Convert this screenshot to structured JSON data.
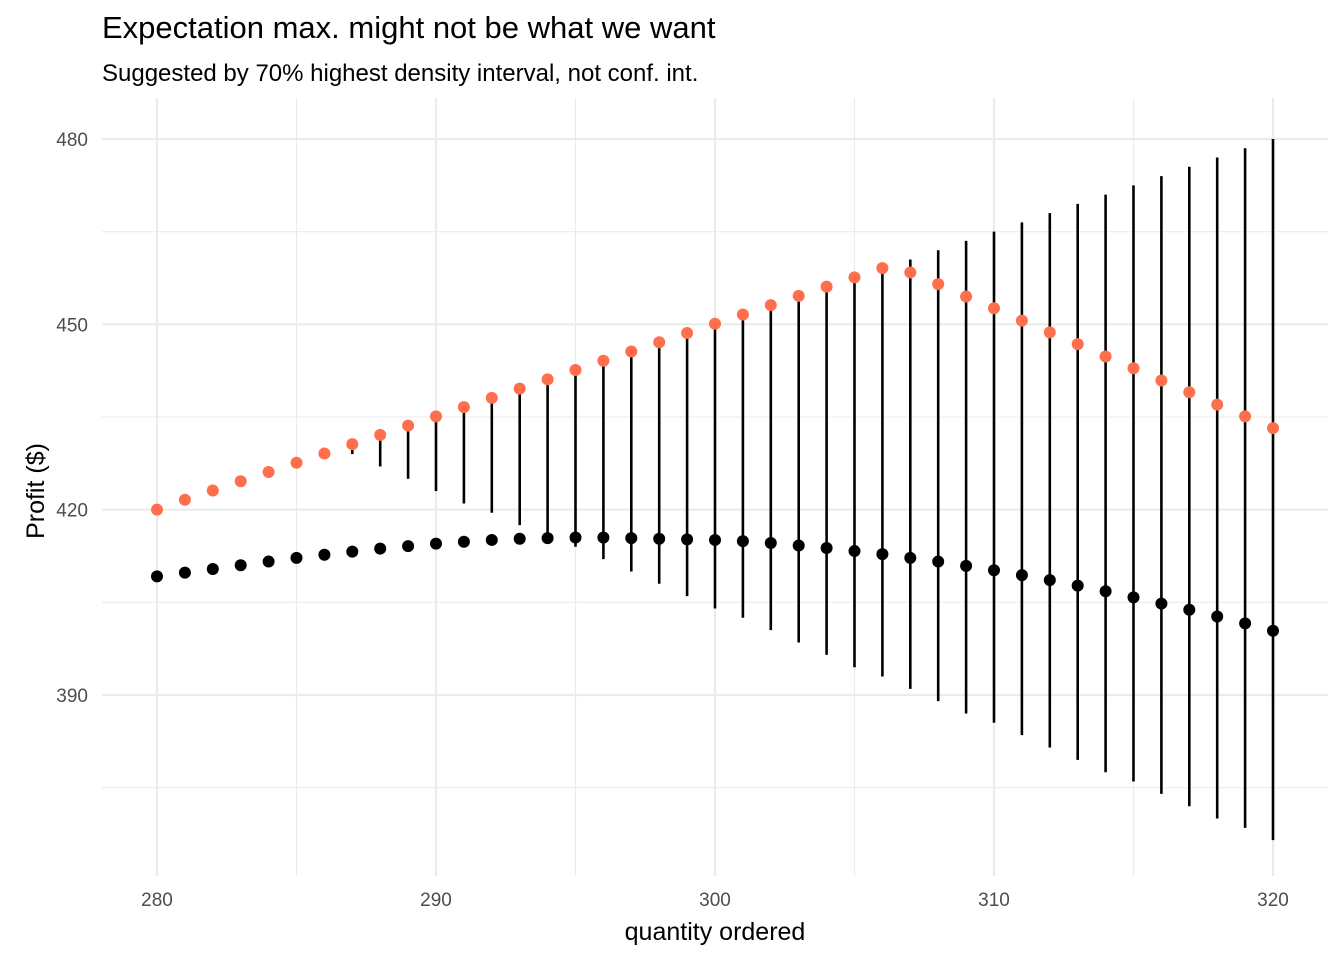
{
  "chart_data": {
    "type": "scatter",
    "title": "Expectation max. might not be what we want",
    "subtitle": "Suggested by 70% highest density interval, not conf. int.",
    "xlabel": "quantity ordered",
    "ylabel": "Profit ($)",
    "xlim": [
      278,
      321
    ],
    "ylim": [
      363,
      484
    ],
    "x_ticks": [
      280,
      290,
      300,
      310,
      320
    ],
    "y_ticks": [
      390,
      420,
      450,
      480
    ],
    "grid": true,
    "colors": {
      "expected": "#000000",
      "upper": "#FF6F4B",
      "interval": "#000000",
      "grid": "#EBEBEB"
    },
    "x": [
      280,
      281,
      282,
      283,
      284,
      285,
      286,
      287,
      288,
      289,
      290,
      291,
      292,
      293,
      294,
      295,
      296,
      297,
      298,
      299,
      300,
      301,
      302,
      303,
      304,
      305,
      306,
      307,
      308,
      309,
      310,
      311,
      312,
      313,
      314,
      315,
      316,
      317,
      318,
      319,
      320
    ],
    "series": [
      {
        "values": [
          409.2,
          409.8,
          410.4,
          411.0,
          411.6,
          412.2,
          412.7,
          413.2,
          413.7,
          414.1,
          414.5,
          414.8,
          415.1,
          415.3,
          415.4,
          415.5,
          415.5,
          415.4,
          415.3,
          415.2,
          415.1,
          414.9,
          414.6,
          414.2,
          413.8,
          413.3,
          412.8,
          412.2,
          411.6,
          410.9,
          410.2,
          409.4,
          408.6,
          407.7,
          406.8,
          405.8,
          404.8,
          403.8,
          402.7,
          401.6,
          400.4
        ]
      },
      {
        "values": [
          420.0,
          421.6,
          423.1,
          424.6,
          426.1,
          427.6,
          429.1,
          430.6,
          432.1,
          433.6,
          435.1,
          436.6,
          438.1,
          439.6,
          441.1,
          442.6,
          444.1,
          445.6,
          447.1,
          448.6,
          450.1,
          451.6,
          453.1,
          454.6,
          456.1,
          457.6,
          459.1,
          458.4,
          456.5,
          454.5,
          452.6,
          450.6,
          448.7,
          446.8,
          444.8,
          442.9,
          440.9,
          439.0,
          437.0,
          435.1,
          433.2
        ]
      }
    ],
    "intervals": [
      {
        "x": 287,
        "low": 429,
        "high": 431
      },
      {
        "x": 288,
        "low": 427,
        "high": 432
      },
      {
        "x": 289,
        "low": 425,
        "high": 433.5
      },
      {
        "x": 290,
        "low": 423,
        "high": 435
      },
      {
        "x": 291,
        "low": 421,
        "high": 436.5
      },
      {
        "x": 292,
        "low": 419.5,
        "high": 438
      },
      {
        "x": 293,
        "low": 417.5,
        "high": 439.5
      },
      {
        "x": 294,
        "low": 415.5,
        "high": 441
      },
      {
        "x": 295,
        "low": 414,
        "high": 442.5
      },
      {
        "x": 296,
        "low": 412,
        "high": 444
      },
      {
        "x": 297,
        "low": 410,
        "high": 445.5
      },
      {
        "x": 298,
        "low": 408,
        "high": 447
      },
      {
        "x": 299,
        "low": 406,
        "high": 448.5
      },
      {
        "x": 300,
        "low": 404,
        "high": 450
      },
      {
        "x": 301,
        "low": 402.5,
        "high": 451.5
      },
      {
        "x": 302,
        "low": 400.5,
        "high": 453
      },
      {
        "x": 303,
        "low": 398.5,
        "high": 454.5
      },
      {
        "x": 304,
        "low": 396.5,
        "high": 456
      },
      {
        "x": 305,
        "low": 394.5,
        "high": 457.5
      },
      {
        "x": 306,
        "low": 393,
        "high": 459
      },
      {
        "x": 307,
        "low": 391,
        "high": 460.5
      },
      {
        "x": 308,
        "low": 389,
        "high": 462
      },
      {
        "x": 309,
        "low": 387,
        "high": 463.5
      },
      {
        "x": 310,
        "low": 385.5,
        "high": 465
      },
      {
        "x": 311,
        "low": 383.5,
        "high": 466.5
      },
      {
        "x": 312,
        "low": 381.5,
        "high": 468
      },
      {
        "x": 313,
        "low": 379.5,
        "high": 469.5
      },
      {
        "x": 314,
        "low": 377.5,
        "high": 471
      },
      {
        "x": 315,
        "low": 376,
        "high": 472.5
      },
      {
        "x": 316,
        "low": 374,
        "high": 474
      },
      {
        "x": 317,
        "low": 372,
        "high": 475.5
      },
      {
        "x": 318,
        "low": 370,
        "high": 477
      },
      {
        "x": 319,
        "low": 368.5,
        "high": 478.5
      },
      {
        "x": 320,
        "low": 366.5,
        "high": 480
      }
    ]
  }
}
